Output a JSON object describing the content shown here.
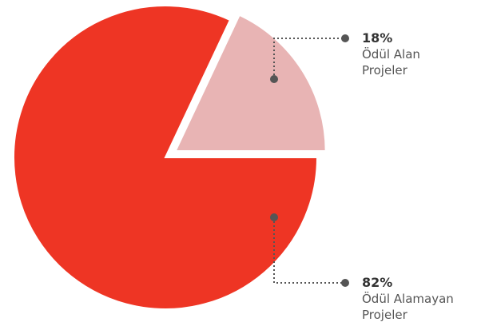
{
  "chart_data": {
    "type": "pie",
    "categories": [
      "Ödül Alan Projeler",
      "Ödül Alamayan Projeler"
    ],
    "values": [
      18,
      82
    ],
    "value_labels": [
      "18%",
      "82%"
    ],
    "colors": [
      "#e8b4b4",
      "#ee3524"
    ]
  }
}
